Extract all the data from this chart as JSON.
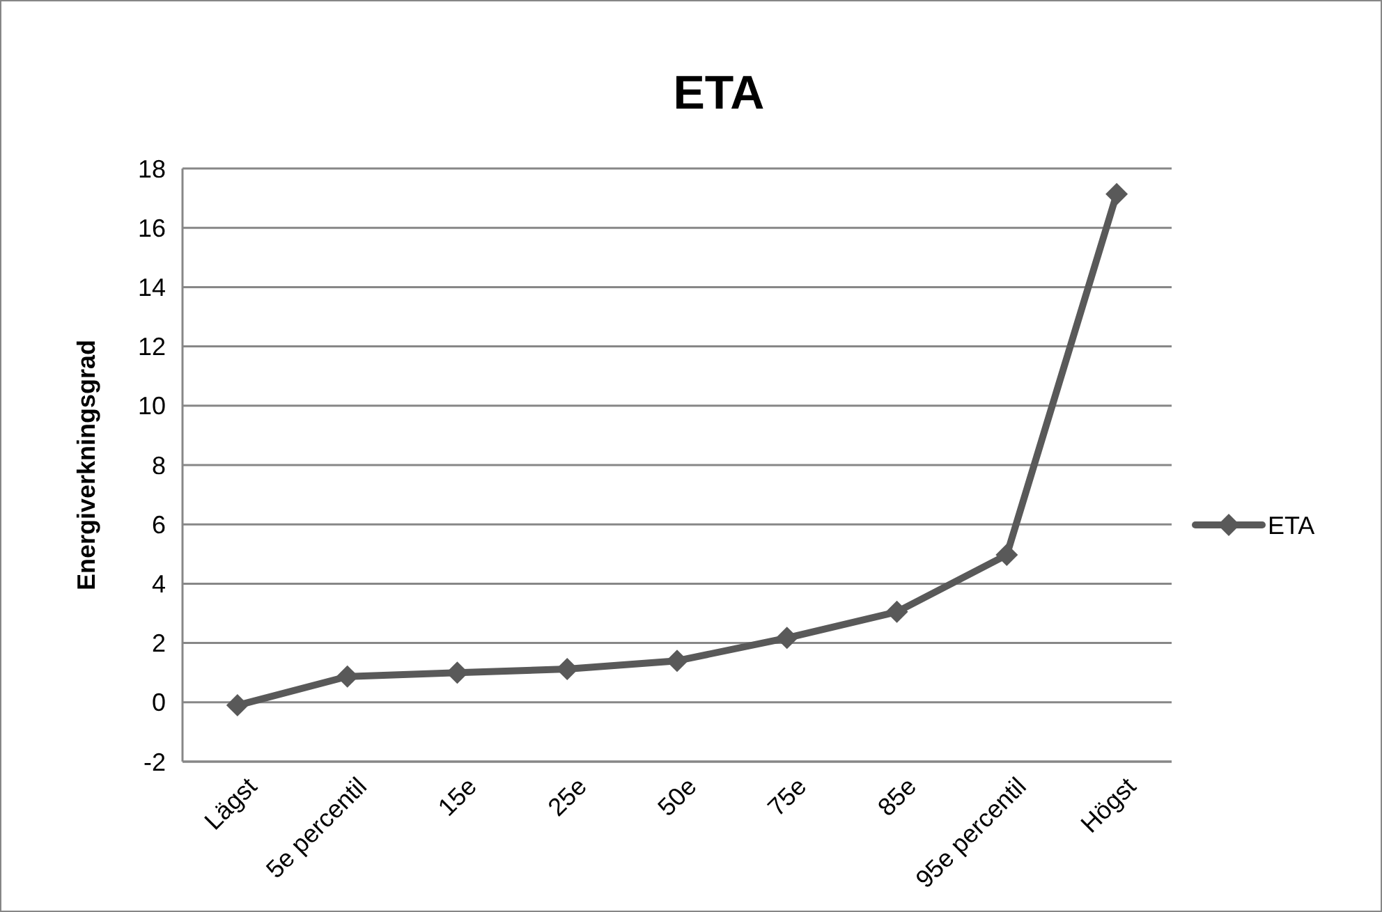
{
  "chart_data": {
    "type": "line",
    "title": "ETA",
    "ylabel": "Energiverkningsgrad",
    "categories": [
      "Lägst",
      "5e percentil",
      "15e",
      "25e",
      "50e",
      "75e",
      "85e",
      "95e percentil",
      "Högst"
    ],
    "series": [
      {
        "name": "ETA",
        "color": "#595959",
        "values": [
          -0.1,
          0.87,
          1.0,
          1.12,
          1.4,
          2.17,
          3.05,
          4.97,
          17.14
        ]
      }
    ],
    "ylim": [
      -2,
      18
    ],
    "yticks": [
      -2,
      0,
      2,
      4,
      6,
      8,
      10,
      12,
      14,
      16,
      18
    ],
    "grid": "y",
    "legend": "right",
    "marker": "diamond",
    "line_style": "solid"
  }
}
